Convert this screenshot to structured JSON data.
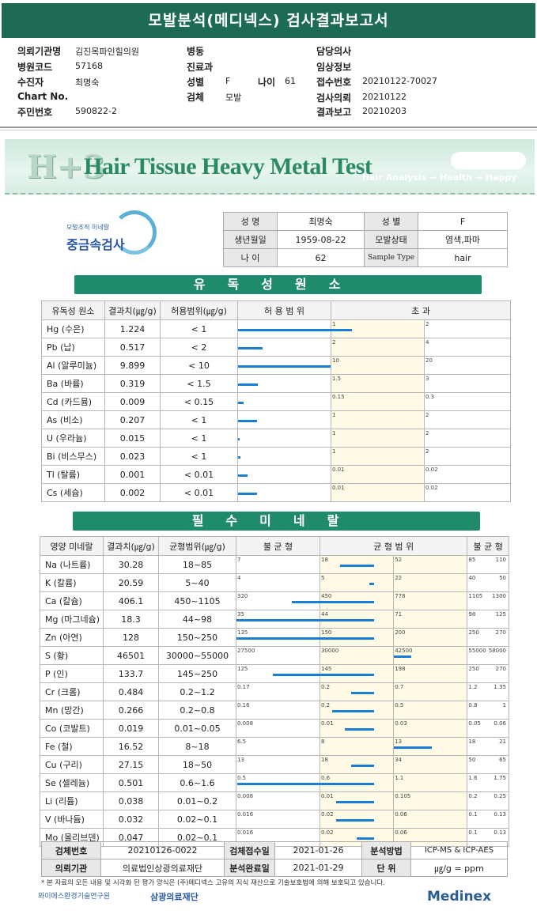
{
  "report": {
    "title": "모발분석(메디넥스) 검사결과보고서",
    "fields": {
      "institution_label": "의뢰기관명",
      "institution": "김진목파인힐의원",
      "ward_label": "병동",
      "doctor_label": "담당의사",
      "hospital_code_label": "병원코드",
      "hospital_code": "57168",
      "dept_label": "진료과",
      "clinical_label": "임상정보",
      "recipient_label": "수진자",
      "recipient": "최명숙",
      "sex_label": "성별",
      "sex": "F",
      "age_label": "나이",
      "age": "61",
      "receipt_label": "접수번호",
      "receipt": "20210122-70027",
      "chart_label": "Chart No.",
      "specimen_label": "검체",
      "specimen": "모발",
      "request_label": "검사의뢰",
      "request": "20210122",
      "id_label": "주민번호",
      "id": "590822-2",
      "result_label": "결과보고",
      "result": "20210203"
    }
  },
  "header": {
    "h3": "H+3",
    "title": "Hair Tissue Heavy Metal Test",
    "subtitle": "Hair Analysis → Health → Happy"
  },
  "logo": {
    "small": "모발조직 미네랄",
    "big": "중금속검사"
  },
  "patient": {
    "name_label": "성 명",
    "name": "최명숙",
    "sex_label": "성 별",
    "sex": "F",
    "dob_label": "생년월일",
    "dob": "1959-08-22",
    "hair_label": "모발상태",
    "hair": "염색,파마",
    "age_label": "나 이",
    "age": "62",
    "sample_label": "Sample Type",
    "sample": "hair"
  },
  "toxic": {
    "title": "유독성원소",
    "headers": [
      "유독성 원소",
      "결과치(㎍/g)",
      "허용범위(㎍/g)",
      "허 용 범 위",
      "초 과"
    ],
    "rows": [
      {
        "name": "Hg (수은)",
        "value": "1.224",
        "range": "< 1",
        "t1": "1",
        "t2": "2",
        "level": 1.224,
        "lim": 1
      },
      {
        "name": "Pb (납)",
        "value": "0.517",
        "range": "< 2",
        "t1": "2",
        "t2": "4",
        "level": 0.517,
        "lim": 2
      },
      {
        "name": "Al (알루미늄)",
        "value": "9.899",
        "range": "< 10",
        "t1": "10",
        "t2": "20",
        "level": 9.899,
        "lim": 10
      },
      {
        "name": "Ba (바륨)",
        "value": "0.319",
        "range": "< 1.5",
        "t1": "1.5",
        "t2": "3",
        "level": 0.319,
        "lim": 1.5
      },
      {
        "name": "Cd (카드뮴)",
        "value": "0.009",
        "range": "< 0.15",
        "t1": "0.15",
        "t2": "0.3",
        "level": 0.009,
        "lim": 0.15
      },
      {
        "name": "As (비소)",
        "value": "0.207",
        "range": "< 1",
        "t1": "1",
        "t2": "2",
        "level": 0.207,
        "lim": 1
      },
      {
        "name": "U (우라늄)",
        "value": "0.015",
        "range": "< 1",
        "t1": "1",
        "t2": "2",
        "level": 0.015,
        "lim": 1
      },
      {
        "name": "Bi (비스무스)",
        "value": "0.023",
        "range": "< 1",
        "t1": "1",
        "t2": "2",
        "level": 0.023,
        "lim": 1
      },
      {
        "name": "Tl (탈륨)",
        "value": "0.001",
        "range": "< 0.01",
        "t1": "0.01",
        "t2": "0.02",
        "level": 0.001,
        "lim": 0.01
      },
      {
        "name": "Cs (세슘)",
        "value": "0.002",
        "range": "< 0.01",
        "t1": "0.01",
        "t2": "0.02",
        "level": 0.002,
        "lim": 0.01
      }
    ]
  },
  "minerals": {
    "title": "필수미네랄",
    "headers": [
      "영양 미네랄",
      "결과치(㎍/g)",
      "균형범위(㎍/g)",
      "불 균 형",
      "균 형 범 위",
      "불 균 형"
    ],
    "rows": [
      {
        "name": "Na (나트륨)",
        "value": "30.28",
        "range": "18~85",
        "t": [
          "7",
          "18",
          "52",
          "85",
          "110"
        ],
        "nums": [
          7,
          18,
          52,
          85,
          110
        ],
        "level": 30.28
      },
      {
        "name": "K (칼륨)",
        "value": "20.59",
        "range": "5~40",
        "t": [
          "4",
          "5",
          "22",
          "40",
          "50"
        ],
        "nums": [
          4,
          5,
          22,
          40,
          50
        ],
        "level": 20.59
      },
      {
        "name": "Ca (칼슘)",
        "value": "406.1",
        "range": "450~1105",
        "t": [
          "320",
          "450",
          "778",
          "1105",
          "1300"
        ],
        "nums": [
          320,
          450,
          778,
          1105,
          1300
        ],
        "level": 406.1
      },
      {
        "name": "Mg (마그네슘)",
        "value": "18.3",
        "range": "44~98",
        "t": [
          "35",
          "44",
          "71",
          "98",
          "125"
        ],
        "nums": [
          35,
          44,
          71,
          98,
          125
        ],
        "level": 18.3
      },
      {
        "name": "Zn (아연)",
        "value": "128",
        "range": "150~250",
        "t": [
          "135",
          "150",
          "200",
          "250",
          "270"
        ],
        "nums": [
          135,
          150,
          200,
          250,
          270
        ],
        "level": 128
      },
      {
        "name": "S (황)",
        "value": "46501",
        "range": "30000~55000",
        "t": [
          "27500",
          "30000",
          "42500",
          "55000",
          "58000"
        ],
        "nums": [
          27500,
          30000,
          42500,
          55000,
          58000
        ],
        "level": 46501
      },
      {
        "name": "P (인)",
        "value": "133.7",
        "range": "145~250",
        "t": [
          "125",
          "145",
          "198",
          "250",
          "270"
        ],
        "nums": [
          125,
          145,
          198,
          250,
          270
        ],
        "level": 133.7
      },
      {
        "name": "Cr (크롬)",
        "value": "0.484",
        "range": "0.2~1.2",
        "t": [
          "0.17",
          "0.2",
          "0.7",
          "1.2",
          "1.35"
        ],
        "nums": [
          0.17,
          0.2,
          0.7,
          1.2,
          1.35
        ],
        "level": 0.484
      },
      {
        "name": "Mn (망간)",
        "value": "0.266",
        "range": "0.2~0.8",
        "t": [
          "0.16",
          "0.2",
          "0.5",
          "0.8",
          "1"
        ],
        "nums": [
          0.16,
          0.2,
          0.5,
          0.8,
          1
        ],
        "level": 0.266
      },
      {
        "name": "Co (코발트)",
        "value": "0.019",
        "range": "0.01~0.05",
        "t": [
          "0.008",
          "0.01",
          "0.03",
          "0.05",
          "0.06"
        ],
        "nums": [
          0.008,
          0.01,
          0.03,
          0.05,
          0.06
        ],
        "level": 0.019
      },
      {
        "name": "Fe (철)",
        "value": "16.52",
        "range": "8~18",
        "t": [
          "6.5",
          "8",
          "13",
          "18",
          "21"
        ],
        "nums": [
          6.5,
          8,
          13,
          18,
          21
        ],
        "level": 16.52
      },
      {
        "name": "Cu (구리)",
        "value": "27.15",
        "range": "18~50",
        "t": [
          "13",
          "18",
          "34",
          "50",
          "65"
        ],
        "nums": [
          13,
          18,
          34,
          50,
          65
        ],
        "level": 27.15
      },
      {
        "name": "Se (셀레늄)",
        "value": "0.501",
        "range": "0.6~1.6",
        "t": [
          "0.5",
          "0.6",
          "1.1",
          "1.6",
          "1.75"
        ],
        "nums": [
          0.5,
          0.6,
          1.1,
          1.6,
          1.75
        ],
        "level": 0.501
      },
      {
        "name": "Li (리튬)",
        "value": "0.038",
        "range": "0.01~0.2",
        "t": [
          "0.008",
          "0.01",
          "0.105",
          "0.2",
          "0.25"
        ],
        "nums": [
          0.008,
          0.01,
          0.105,
          0.2,
          0.25
        ],
        "level": 0.038
      },
      {
        "name": "V (바나듐)",
        "value": "0.032",
        "range": "0.02~0.1",
        "t": [
          "0.016",
          "0.02",
          "0.06",
          "0.1",
          "0.13"
        ],
        "nums": [
          0.016,
          0.02,
          0.06,
          0.1,
          0.13
        ],
        "level": 0.032
      },
      {
        "name": "Mo (몰리브덴)",
        "value": "0.047",
        "range": "0.02~0.1",
        "t": [
          "0.016",
          "0.02",
          "0.06",
          "0.1",
          "0.13"
        ],
        "nums": [
          0.016,
          0.02,
          0.06,
          0.1,
          0.13
        ],
        "level": 0.047
      }
    ]
  },
  "bottom": {
    "sample_no_label": "검체번호",
    "sample_no": "20210126-0022",
    "recv_label": "검체접수일",
    "recv": "2021-01-26",
    "method_label": "분석방법",
    "method": "ICP-MS & ICP-AES",
    "org_label": "의뢰기관",
    "org": "의료법인상광의료재단",
    "done_label": "분석완료일",
    "done": "2021-01-29",
    "unit_label": "단 위",
    "unit": "㎍/g = ppm"
  },
  "note": "* 본 자료의 모든 내용 및 시각화 된 평가 양식은 (주)메디넥스 고유의 지식 재산으로 기술보호법에 의해 보호되고 있습니다.",
  "footer": {
    "left": "와이에스환경기술연구원",
    "mid": "삼광의료재단",
    "right": "Medinex"
  }
}
